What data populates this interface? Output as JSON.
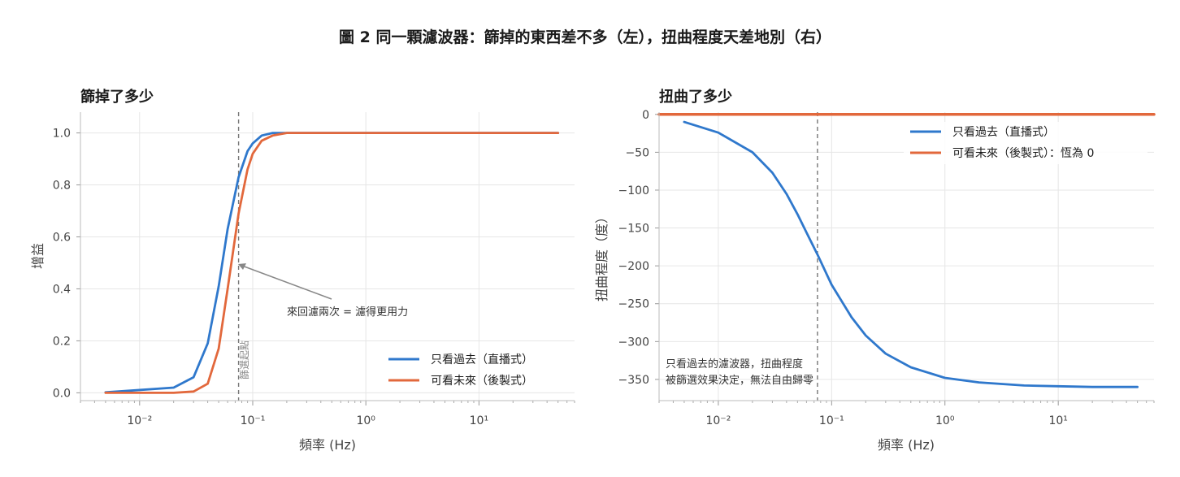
{
  "figure_title": "圖 2 同一顆濾波器：篩掉的東西差不多（左），扭曲程度天差地別（右）",
  "colors": {
    "causal": "#2f78cc",
    "acausal": "#e2683c",
    "cutoff_line": "#777777"
  },
  "chart_data": [
    {
      "type": "line",
      "title": "篩掉了多少",
      "xlabel": "頻率 (Hz)",
      "ylabel": "增益",
      "xscale": "log",
      "xlim": [
        0.003,
        70
      ],
      "ylim": [
        -0.03,
        1.08
      ],
      "x_ticks": [
        {
          "value": 0.01,
          "label": "10⁻²"
        },
        {
          "value": 0.1,
          "label": "10⁻¹"
        },
        {
          "value": 1,
          "label": "10⁰"
        },
        {
          "value": 10,
          "label": "10¹"
        }
      ],
      "y_ticks": [
        {
          "value": 0.0,
          "label": "0.0"
        },
        {
          "value": 0.2,
          "label": "0.2"
        },
        {
          "value": 0.4,
          "label": "0.4"
        },
        {
          "value": 0.6,
          "label": "0.6"
        },
        {
          "value": 0.8,
          "label": "0.8"
        },
        {
          "value": 1.0,
          "label": "1.0"
        }
      ],
      "grid": true,
      "legend_position": "lower-right",
      "cutoff_hz": 0.075,
      "cutoff_label": "篩選起點",
      "annotation": {
        "text": "來回濾兩次 = 濾得更用力",
        "points_to": {
          "x": 0.08,
          "y": 0.5
        }
      },
      "series": [
        {
          "name": "只看過去（直播式）",
          "x": [
            0.005,
            0.02,
            0.03,
            0.04,
            0.05,
            0.06,
            0.075,
            0.09,
            0.1,
            0.12,
            0.15,
            0.2,
            1,
            10,
            50
          ],
          "y": [
            0.002,
            0.02,
            0.06,
            0.19,
            0.41,
            0.63,
            0.83,
            0.93,
            0.96,
            0.99,
            1.0,
            1.0,
            1.0,
            1.0,
            1.0
          ]
        },
        {
          "name": "可看未來（後製式）",
          "x": [
            0.005,
            0.02,
            0.03,
            0.04,
            0.05,
            0.06,
            0.075,
            0.09,
            0.1,
            0.12,
            0.15,
            0.2,
            1,
            10,
            50
          ],
          "y": [
            0.0,
            0.0,
            0.005,
            0.035,
            0.17,
            0.4,
            0.69,
            0.86,
            0.92,
            0.97,
            0.99,
            1.0,
            1.0,
            1.0,
            1.0
          ]
        }
      ]
    },
    {
      "type": "line",
      "title": "扭曲了多少",
      "xlabel": "頻率 (Hz)",
      "ylabel": "扭曲程度（度）",
      "xscale": "log",
      "xlim": [
        0.003,
        70
      ],
      "ylim": [
        -378,
        3
      ],
      "x_ticks": [
        {
          "value": 0.01,
          "label": "10⁻²"
        },
        {
          "value": 0.1,
          "label": "10⁻¹"
        },
        {
          "value": 1,
          "label": "10⁰"
        },
        {
          "value": 10,
          "label": "10¹"
        }
      ],
      "y_ticks": [
        {
          "value": 0,
          "label": "0"
        },
        {
          "value": -50,
          "label": "−50"
        },
        {
          "value": -100,
          "label": "−100"
        },
        {
          "value": -150,
          "label": "−150"
        },
        {
          "value": -200,
          "label": "−200"
        },
        {
          "value": -250,
          "label": "−250"
        },
        {
          "value": -300,
          "label": "−300"
        },
        {
          "value": -350,
          "label": "−350"
        }
      ],
      "grid": true,
      "legend_position": "top-right",
      "cutoff_hz": 0.075,
      "annotation": {
        "line1": "只看過去的濾波器，扭曲程度",
        "line2": "被篩選效果決定，無法自由歸零"
      },
      "series": [
        {
          "name": "只看過去（直播式）",
          "x": [
            0.005,
            0.01,
            0.02,
            0.03,
            0.04,
            0.05,
            0.06,
            0.075,
            0.1,
            0.15,
            0.2,
            0.3,
            0.5,
            1,
            2,
            5,
            10,
            20,
            50
          ],
          "y": [
            -10,
            -24,
            -50,
            -77,
            -105,
            -132,
            -156,
            -185,
            -225,
            -268,
            -292,
            -316,
            -334,
            -348,
            -354,
            -358,
            -359,
            -360,
            -360
          ]
        },
        {
          "name": "可看未來（後製式）：恆為 0",
          "x": [
            0.003,
            70
          ],
          "y": [
            0,
            0
          ]
        }
      ]
    }
  ]
}
